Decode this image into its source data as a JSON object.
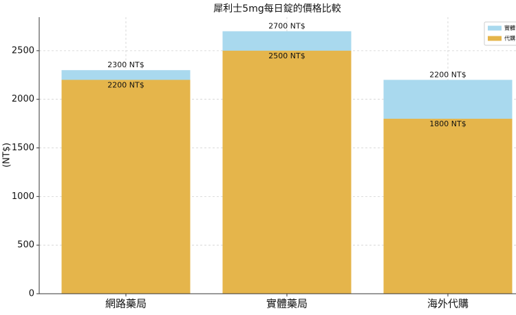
{
  "chart_data": {
    "type": "bar",
    "title": "犀利士5mg每日錠的價格比較",
    "y_label": "(NT$)",
    "categories": [
      "網路藥局",
      "實體藥局",
      "海外代購"
    ],
    "series": [
      {
        "name": "實體",
        "color": "#a9d9ee",
        "values": [
          2300,
          2700,
          2200
        ],
        "value_labels": [
          "2300 NT$",
          "2700 NT$",
          "2200 NT$"
        ]
      },
      {
        "name": "代購",
        "color": "#e5b54b",
        "values": [
          2200,
          2500,
          1800
        ],
        "value_labels": [
          "2200 NT$",
          "2500 NT$",
          "1800 NT$"
        ]
      }
    ],
    "ylim": [
      0,
      2845
    ],
    "yticks": [
      0,
      500,
      1000,
      1500,
      2000,
      2500
    ],
    "grid": true,
    "legend": "upper right"
  }
}
